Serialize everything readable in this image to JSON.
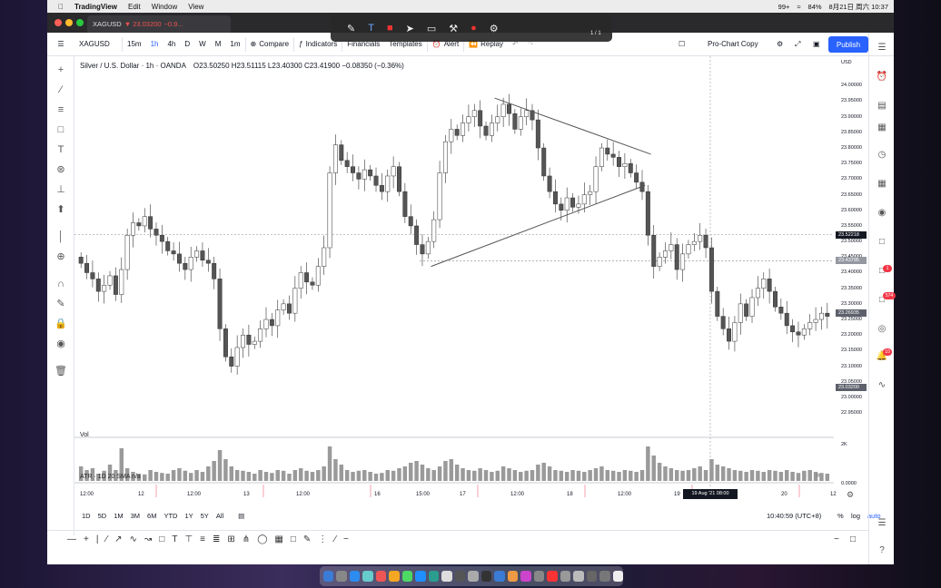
{
  "mac_menu": {
    "app": "TradingView",
    "items": [
      "Edit",
      "Window",
      "View"
    ],
    "status": {
      "date": "8月21日 周六 10:37",
      "battery": "84%",
      "badge": "99+"
    }
  },
  "browser_tab": {
    "symbol": "XAGUSD",
    "price": "▼ 23.03200",
    "change": "−0.9..."
  },
  "float_toolbar": {
    "page": "1 / 1"
  },
  "topbar": {
    "symbol": "XAGUSD",
    "intervals": [
      "15m",
      "1h",
      "4h",
      "D",
      "W",
      "M",
      "1m"
    ],
    "compare": "Compare",
    "indicators": "Indicators",
    "financials": "Financials",
    "templates": "Templates",
    "alert": "Alert",
    "replay": "Replay",
    "layout": "Pro-Chart Copy",
    "publish": "Publish"
  },
  "legend": {
    "title": "Silver / U.S. Dollar · 1h · OANDA",
    "ohlc": "O23.50250  H23.51115  L23.40300  C23.41900  −0.08350 (−0.36%)"
  },
  "volume_pane": {
    "label": "Vol",
    "axis": "2K"
  },
  "atr_pane": {
    "label": "ATR · 1D 20 SMA  n/a",
    "axis": "0.0000"
  },
  "price_scale": {
    "currency": "USD",
    "ticks": [
      "24.00000",
      "23.95000",
      "23.90000",
      "23.85000",
      "23.80000",
      "23.75000",
      "23.70000",
      "23.65000",
      "23.60000",
      "23.55000",
      "23.50000",
      "23.45000",
      "23.40000",
      "23.35000",
      "23.30000",
      "23.25000",
      "23.20000",
      "23.15000",
      "23.10000",
      "23.05000",
      "23.00000",
      "22.95000"
    ],
    "labels": [
      {
        "text": "23.52218",
        "color": "#131722",
        "price": 23.52218
      },
      {
        "text": "23.43795",
        "color": "#9598a1",
        "price": 23.43795
      },
      {
        "text": "23.26935",
        "color": "#5d606b",
        "price": 23.26935
      },
      {
        "text": "23.03200",
        "color": "#5d606b",
        "price": 23.032
      }
    ]
  },
  "time_scale": {
    "ticks": [
      "12:00",
      "12",
      "12:00",
      "13",
      "12:00",
      "16",
      "15:00",
      "17",
      "12:00",
      "18",
      "12:00",
      "19",
      "20",
      "12"
    ],
    "crosshair": "19 Aug '21  08:00"
  },
  "bottom": {
    "ranges": [
      "1D",
      "5D",
      "1M",
      "3M",
      "6M",
      "YTD",
      "1Y",
      "5Y",
      "All"
    ],
    "clock": "10:40:59 (UTC+8)",
    "pct": "%",
    "log": "log",
    "auto": "auto"
  },
  "chart_data": {
    "type": "candlestick",
    "symbol": "XAGUSD",
    "interval": "1h",
    "ylim": [
      22.93,
      24.03
    ],
    "grid": false,
    "closes": [
      23.43,
      23.4,
      23.38,
      23.34,
      23.36,
      23.39,
      23.33,
      23.41,
      23.52,
      23.56,
      23.55,
      23.58,
      23.54,
      23.52,
      23.5,
      23.47,
      23.46,
      23.43,
      23.41,
      23.45,
      23.47,
      23.44,
      23.43,
      23.38,
      23.22,
      23.13,
      23.1,
      23.16,
      23.2,
      23.17,
      23.18,
      23.22,
      23.25,
      23.23,
      23.28,
      23.3,
      23.27,
      23.35,
      23.4,
      23.37,
      23.36,
      23.42,
      23.48,
      23.72,
      23.81,
      23.76,
      23.74,
      23.72,
      23.7,
      23.73,
      23.71,
      23.68,
      23.66,
      23.71,
      23.74,
      23.66,
      23.58,
      23.55,
      23.49,
      23.46,
      23.5,
      23.57,
      23.72,
      23.82,
      23.86,
      23.84,
      23.88,
      23.9,
      23.92,
      23.87,
      23.84,
      23.88,
      23.9,
      23.94,
      23.91,
      23.86,
      23.9,
      23.92,
      23.89,
      23.8,
      23.71,
      23.66,
      23.62,
      23.6,
      23.64,
      23.61,
      23.62,
      23.65,
      23.66,
      23.74,
      23.8,
      23.78,
      23.77,
      23.74,
      23.75,
      23.72,
      23.69,
      23.66,
      23.52,
      23.42,
      23.45,
      23.47,
      23.49,
      23.41,
      23.46,
      23.49,
      23.5,
      23.52,
      23.48,
      23.34,
      23.26,
      23.22,
      23.18,
      23.24,
      23.3,
      23.26,
      23.32,
      23.35,
      23.38,
      23.34,
      23.29,
      23.27,
      23.23,
      23.21,
      23.2,
      23.22,
      23.24,
      23.25,
      23.27,
      23.26
    ],
    "volume": [
      40,
      30,
      35,
      20,
      28,
      45,
      30,
      90,
      35,
      25,
      20,
      18,
      30,
      25,
      22,
      20,
      30,
      35,
      28,
      22,
      30,
      25,
      40,
      55,
      85,
      60,
      40,
      30,
      28,
      25,
      20,
      30,
      25,
      22,
      30,
      28,
      20,
      30,
      35,
      28,
      25,
      30,
      40,
      95,
      60,
      45,
      30,
      25,
      28,
      30,
      25,
      20,
      22,
      30,
      28,
      35,
      40,
      50,
      55,
      45,
      35,
      30,
      40,
      55,
      60,
      45,
      35,
      30,
      28,
      35,
      30,
      25,
      28,
      40,
      35,
      30,
      25,
      28,
      30,
      45,
      50,
      40,
      30,
      28,
      25,
      30,
      28,
      25,
      30,
      35,
      40,
      30,
      28,
      25,
      30,
      28,
      25,
      30,
      95,
      70,
      50,
      40,
      35,
      30,
      28,
      30,
      35,
      40,
      30,
      60,
      45,
      40,
      35,
      30,
      28,
      25,
      30,
      28,
      25,
      30,
      28,
      25,
      30,
      25,
      22,
      28,
      30,
      25,
      22,
      20
    ],
    "trendlines": [
      {
        "from": [
          23.96,
          "17 10:00"
        ],
        "to": [
          23.78,
          "18 17:00"
        ]
      },
      {
        "from": [
          23.42,
          "16 15:00"
        ],
        "to": [
          23.68,
          "18 18:00"
        ]
      }
    ],
    "horizontal_lines": [
      23.52218,
      23.43795
    ]
  }
}
